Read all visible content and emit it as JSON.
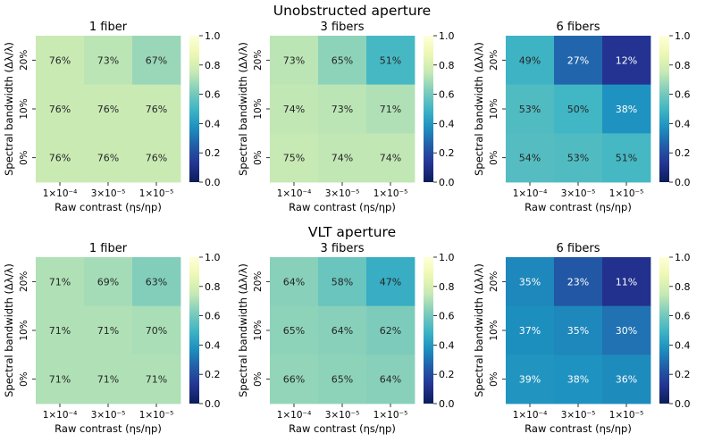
{
  "section_titles": [
    "Unobstructed aperture",
    "VLT aperture"
  ],
  "colorbar": {
    "min": 0.0,
    "max": 1.0,
    "ticks": [
      "0.0",
      "0.2",
      "0.4",
      "0.6",
      "0.8",
      "1.0"
    ],
    "colormap": "YlGnBu"
  },
  "chart_data": [
    {
      "type": "heatmap",
      "section": "Unobstructed aperture",
      "title": "1 fiber",
      "xlabel": "Raw contrast (ηs/ηp)",
      "ylabel": "Spectral bandwidth (Δλ/λ)",
      "x_ticks": [
        "1×10⁻⁴",
        "3×10⁻⁵",
        "1×10⁻⁵"
      ],
      "y_ticks": [
        "20%",
        "10%",
        "0%"
      ],
      "values": [
        [
          0.76,
          0.73,
          0.67
        ],
        [
          0.76,
          0.76,
          0.76
        ],
        [
          0.76,
          0.76,
          0.76
        ]
      ],
      "labels": [
        [
          "76%",
          "73%",
          "67%"
        ],
        [
          "76%",
          "76%",
          "76%"
        ],
        [
          "76%",
          "76%",
          "76%"
        ]
      ]
    },
    {
      "type": "heatmap",
      "section": "Unobstructed aperture",
      "title": "3 fibers",
      "xlabel": "Raw contrast (ηs/ηp)",
      "ylabel": "Spectral bandwidth (Δλ/λ)",
      "x_ticks": [
        "1×10⁻⁴",
        "3×10⁻⁵",
        "1×10⁻⁵"
      ],
      "y_ticks": [
        "20%",
        "10%",
        "0%"
      ],
      "values": [
        [
          0.73,
          0.65,
          0.51
        ],
        [
          0.74,
          0.73,
          0.71
        ],
        [
          0.75,
          0.74,
          0.74
        ]
      ],
      "labels": [
        [
          "73%",
          "65%",
          "51%"
        ],
        [
          "74%",
          "73%",
          "71%"
        ],
        [
          "75%",
          "74%",
          "74%"
        ]
      ]
    },
    {
      "type": "heatmap",
      "section": "Unobstructed aperture",
      "title": "6 fibers",
      "xlabel": "Raw contrast (ηs/ηp)",
      "ylabel": "Spectral bandwidth (Δλ/λ)",
      "x_ticks": [
        "1×10⁻⁴",
        "3×10⁻⁵",
        "1×10⁻⁵"
      ],
      "y_ticks": [
        "20%",
        "10%",
        "0%"
      ],
      "values": [
        [
          0.49,
          0.27,
          0.12
        ],
        [
          0.53,
          0.5,
          0.38
        ],
        [
          0.54,
          0.53,
          0.51
        ]
      ],
      "labels": [
        [
          "49%",
          "27%",
          "12%"
        ],
        [
          "53%",
          "50%",
          "38%"
        ],
        [
          "54%",
          "53%",
          "51%"
        ]
      ]
    },
    {
      "type": "heatmap",
      "section": "VLT aperture",
      "title": "1 fiber",
      "xlabel": "Raw contrast (ηs/ηp)",
      "ylabel": "Spectral bandwidth (Δλ/λ)",
      "x_ticks": [
        "1×10⁻⁴",
        "3×10⁻⁵",
        "1×10⁻⁵"
      ],
      "y_ticks": [
        "20%",
        "10%",
        "0%"
      ],
      "values": [
        [
          0.71,
          0.69,
          0.63
        ],
        [
          0.71,
          0.71,
          0.7
        ],
        [
          0.71,
          0.71,
          0.71
        ]
      ],
      "labels": [
        [
          "71%",
          "69%",
          "63%"
        ],
        [
          "71%",
          "71%",
          "70%"
        ],
        [
          "71%",
          "71%",
          "71%"
        ]
      ]
    },
    {
      "type": "heatmap",
      "section": "VLT aperture",
      "title": "3 fibers",
      "xlabel": "Raw contrast (ηs/ηp)",
      "ylabel": "Spectral bandwidth (Δλ/λ)",
      "x_ticks": [
        "1×10⁻⁴",
        "3×10⁻⁵",
        "1×10⁻⁵"
      ],
      "y_ticks": [
        "20%",
        "10%",
        "0%"
      ],
      "values": [
        [
          0.64,
          0.58,
          0.47
        ],
        [
          0.65,
          0.64,
          0.62
        ],
        [
          0.66,
          0.65,
          0.64
        ]
      ],
      "labels": [
        [
          "64%",
          "58%",
          "47%"
        ],
        [
          "65%",
          "64%",
          "62%"
        ],
        [
          "66%",
          "65%",
          "64%"
        ]
      ]
    },
    {
      "type": "heatmap",
      "section": "VLT aperture",
      "title": "6 fibers",
      "xlabel": "Raw contrast (ηs/ηp)",
      "ylabel": "Spectral bandwidth (Δλ/λ)",
      "x_ticks": [
        "1×10⁻⁴",
        "3×10⁻⁵",
        "1×10⁻⁵"
      ],
      "y_ticks": [
        "20%",
        "10%",
        "0%"
      ],
      "values": [
        [
          0.35,
          0.23,
          0.11
        ],
        [
          0.37,
          0.35,
          0.3
        ],
        [
          0.39,
          0.38,
          0.36
        ]
      ],
      "labels": [
        [
          "35%",
          "23%",
          "11%"
        ],
        [
          "37%",
          "35%",
          "30%"
        ],
        [
          "39%",
          "38%",
          "36%"
        ]
      ]
    }
  ]
}
